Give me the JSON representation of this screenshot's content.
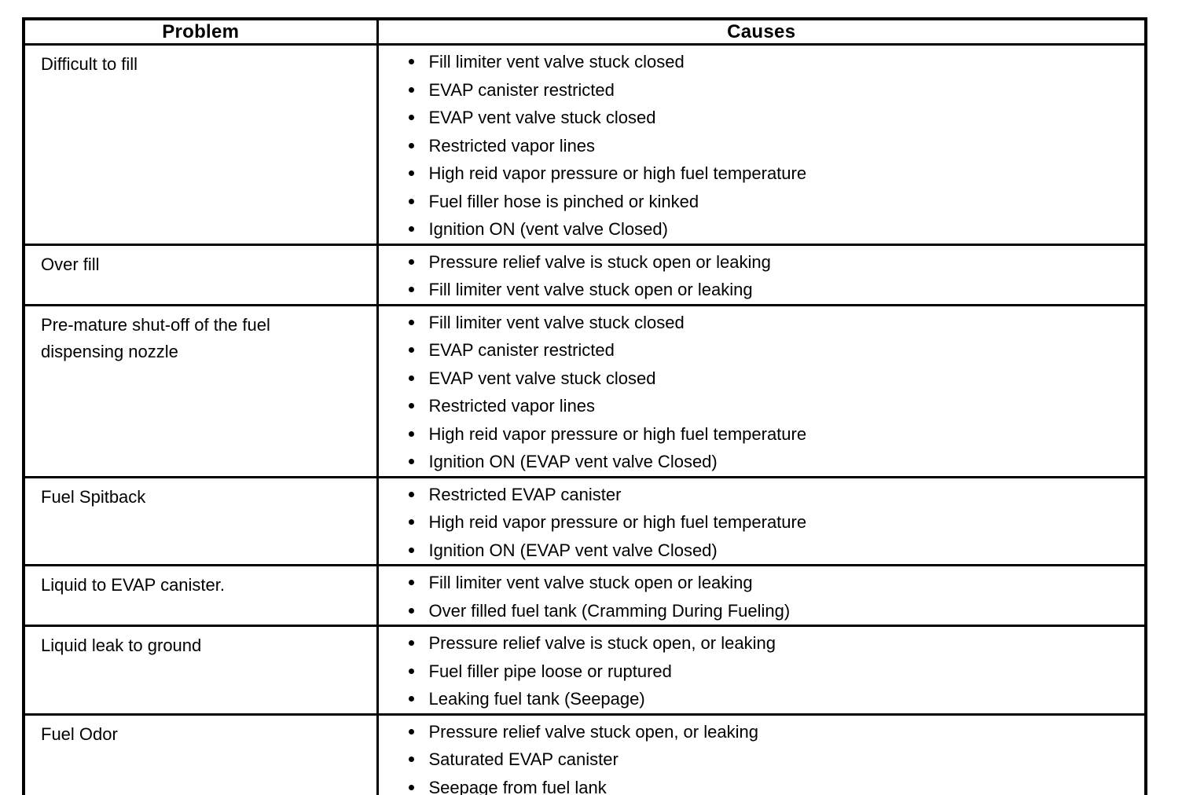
{
  "table": {
    "headers": {
      "problem": "Problem",
      "causes": "Causes"
    },
    "rows": [
      {
        "problem": "Difficult to fill",
        "causes": [
          "Fill limiter vent valve stuck closed",
          "EVAP canister restricted",
          "EVAP vent valve stuck closed",
          "Restricted vapor lines",
          "High reid vapor pressure or high fuel temperature",
          "Fuel filler hose is pinched or kinked",
          "Ignition ON (vent valve Closed)"
        ]
      },
      {
        "problem": "Over fill",
        "causes": [
          "Pressure relief valve is stuck open or leaking",
          "Fill limiter vent valve stuck open or leaking"
        ]
      },
      {
        "problem": "Pre-mature shut-off of the fuel dispensing nozzle",
        "causes": [
          "Fill limiter vent valve stuck closed",
          "EVAP canister restricted",
          "EVAP vent valve stuck closed",
          "Restricted vapor lines",
          "High reid vapor pressure or high fuel temperature",
          "Ignition ON (EVAP vent valve Closed)"
        ]
      },
      {
        "problem": "Fuel Spitback",
        "causes": [
          "Restricted EVAP canister",
          "High reid vapor pressure or high fuel temperature",
          "Ignition ON (EVAP vent valve Closed)"
        ]
      },
      {
        "problem": "Liquid to EVAP canister.",
        "causes": [
          "Fill limiter vent valve stuck open or leaking",
          "Over filled fuel tank (Cramming During Fueling)"
        ]
      },
      {
        "problem": "Liquid leak to ground",
        "causes": [
          "Pressure relief valve is stuck open, or leaking",
          "Fuel filler pipe loose or ruptured",
          "Leaking fuel tank (Seepage)"
        ]
      },
      {
        "problem": "Fuel Odor",
        "causes": [
          "Pressure relief valve stuck open, or leaking",
          "Saturated EVAP canister",
          "Seepage from fuel lank"
        ]
      }
    ]
  }
}
